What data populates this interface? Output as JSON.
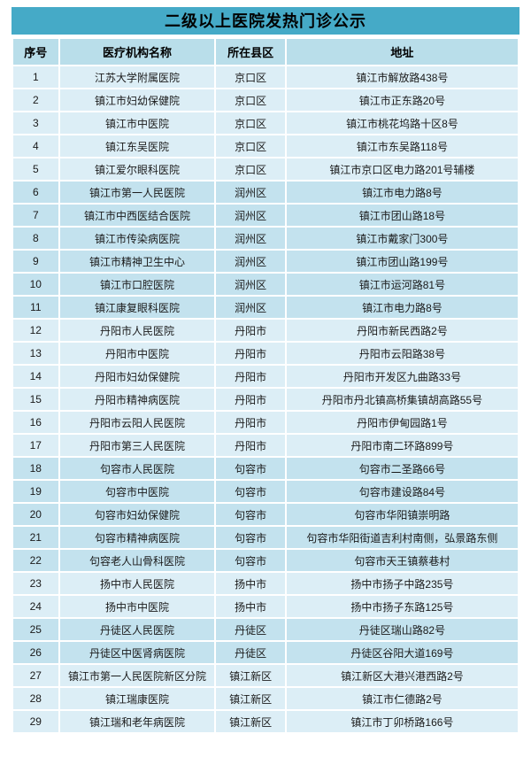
{
  "page": {
    "title": "二级以上医院发热门诊公示"
  },
  "colors": {
    "title_bar_bg": "#45aac7",
    "header_row_bg": "#b9deea",
    "row_light_bg": "#dceef6",
    "row_dark_bg": "#c3e2ee",
    "text": "#1a1a1a"
  },
  "table": {
    "headers": [
      "序号",
      "医疗机构名称",
      "所在县区",
      "地址"
    ],
    "district_shades": {
      "京口区": "light",
      "润州区": "dark",
      "丹阳市": "light",
      "句容市": "dark",
      "扬中市": "light",
      "丹徒区": "dark",
      "镇江新区": "light"
    },
    "rows": [
      {
        "no": "1",
        "name": "江苏大学附属医院",
        "district": "京口区",
        "address": "镇江市解放路438号"
      },
      {
        "no": "2",
        "name": "镇江市妇幼保健院",
        "district": "京口区",
        "address": "镇江市正东路20号"
      },
      {
        "no": "3",
        "name": "镇江市中医院",
        "district": "京口区",
        "address": "镇江市桃花坞路十区8号"
      },
      {
        "no": "4",
        "name": "镇江东吴医院",
        "district": "京口区",
        "address": "镇江市东吴路118号"
      },
      {
        "no": "5",
        "name": "镇江爱尔眼科医院",
        "district": "京口区",
        "address": "镇江市京口区电力路201号辅楼"
      },
      {
        "no": "6",
        "name": "镇江市第一人民医院",
        "district": "润州区",
        "address": "镇江市电力路8号"
      },
      {
        "no": "7",
        "name": "镇江市中西医结合医院",
        "district": "润州区",
        "address": "镇江市团山路18号"
      },
      {
        "no": "8",
        "name": "镇江市传染病医院",
        "district": "润州区",
        "address": "镇江市戴家门300号"
      },
      {
        "no": "9",
        "name": "镇江市精神卫生中心",
        "district": "润州区",
        "address": "镇江市团山路199号"
      },
      {
        "no": "10",
        "name": "镇江市口腔医院",
        "district": "润州区",
        "address": "镇江市运河路81号"
      },
      {
        "no": "11",
        "name": "镇江康复眼科医院",
        "district": "润州区",
        "address": "镇江市电力路8号"
      },
      {
        "no": "12",
        "name": "丹阳市人民医院",
        "district": "丹阳市",
        "address": "丹阳市新民西路2号"
      },
      {
        "no": "13",
        "name": "丹阳市中医院",
        "district": "丹阳市",
        "address": "丹阳市云阳路38号"
      },
      {
        "no": "14",
        "name": "丹阳市妇幼保健院",
        "district": "丹阳市",
        "address": "丹阳市开发区九曲路33号"
      },
      {
        "no": "15",
        "name": "丹阳市精神病医院",
        "district": "丹阳市",
        "address": "丹阳市丹北镇高桥集镇胡高路55号"
      },
      {
        "no": "16",
        "name": "丹阳市云阳人民医院",
        "district": "丹阳市",
        "address": "丹阳市伊甸园路1号"
      },
      {
        "no": "17",
        "name": "丹阳市第三人民医院",
        "district": "丹阳市",
        "address": "丹阳市南二环路899号"
      },
      {
        "no": "18",
        "name": "句容市人民医院",
        "district": "句容市",
        "address": "句容市二圣路66号"
      },
      {
        "no": "19",
        "name": "句容市中医院",
        "district": "句容市",
        "address": "句容市建设路84号"
      },
      {
        "no": "20",
        "name": "句容市妇幼保健院",
        "district": "句容市",
        "address": "句容市华阳镇崇明路"
      },
      {
        "no": "21",
        "name": "句容市精神病医院",
        "district": "句容市",
        "address": "句容市华阳街道吉利村南侧，弘景路东侧"
      },
      {
        "no": "22",
        "name": "句容老人山骨科医院",
        "district": "句容市",
        "address": "句容市天王镇蔡巷村"
      },
      {
        "no": "23",
        "name": "扬中市人民医院",
        "district": "扬中市",
        "address": "扬中市扬子中路235号"
      },
      {
        "no": "24",
        "name": "扬中市中医院",
        "district": "扬中市",
        "address": "扬中市扬子东路125号"
      },
      {
        "no": "25",
        "name": "丹徒区人民医院",
        "district": "丹徒区",
        "address": "丹徒区瑞山路82号"
      },
      {
        "no": "26",
        "name": "丹徒区中医肾病医院",
        "district": "丹徒区",
        "address": "丹徒区谷阳大道169号"
      },
      {
        "no": "27",
        "name": "镇江市第一人民医院新区分院",
        "district": "镇江新区",
        "address": "镇江新区大港兴港西路2号"
      },
      {
        "no": "28",
        "name": "镇江瑞康医院",
        "district": "镇江新区",
        "address": "镇江市仁德路2号"
      },
      {
        "no": "29",
        "name": "镇江瑞和老年病医院",
        "district": "镇江新区",
        "address": "镇江市丁卯桥路166号"
      }
    ]
  }
}
